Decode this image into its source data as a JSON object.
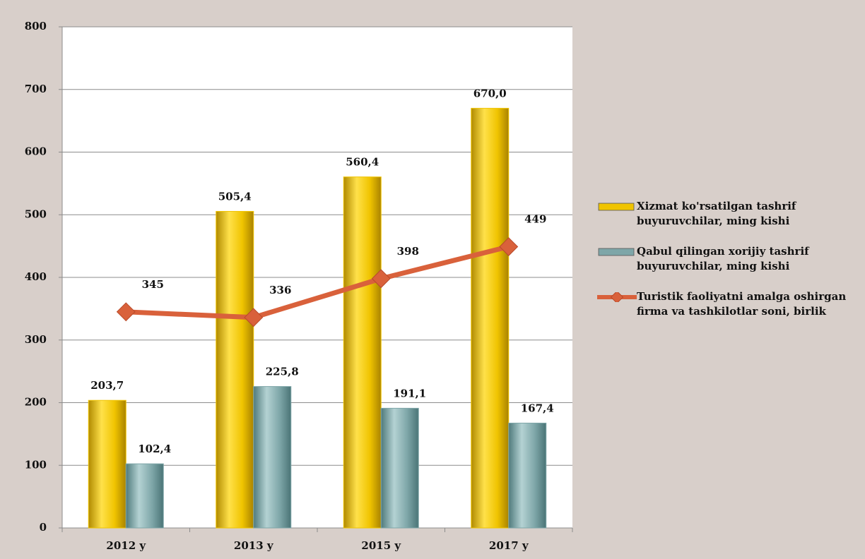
{
  "chart_data": {
    "type": "bar",
    "categories": [
      "2012 y",
      "2013 y",
      "2015 y",
      "2017 y"
    ],
    "series": [
      {
        "name": "Xizmat ko'rsatilgan tashrif buyuruvchilar, ming kishi",
        "type": "bar",
        "color": "#f0c400",
        "values": [
          203.7,
          505.4,
          560.4,
          670.0
        ],
        "value_labels": [
          "203,7",
          "505,4",
          "560,4",
          "670,0"
        ]
      },
      {
        "name": "Qabul qilingan xorijiy tashrif buyuruvchilar, ming kishi",
        "type": "bar",
        "color": "#7ea6a8",
        "values": [
          102.4,
          225.8,
          191.1,
          167.4
        ],
        "value_labels": [
          "102,4",
          "225,8",
          "191,1",
          "167,4"
        ]
      },
      {
        "name": "Turistik faoliyatni amalga oshirgan firma va tashkilotlar soni, birlik",
        "type": "line",
        "color": "#d9613b",
        "values": [
          345,
          336,
          398,
          449
        ]
      }
    ],
    "ylim": [
      0,
      800
    ],
    "yticks": [
      0,
      100,
      200,
      300,
      400,
      500,
      600,
      700,
      800
    ],
    "grid": true,
    "legend": "right"
  }
}
